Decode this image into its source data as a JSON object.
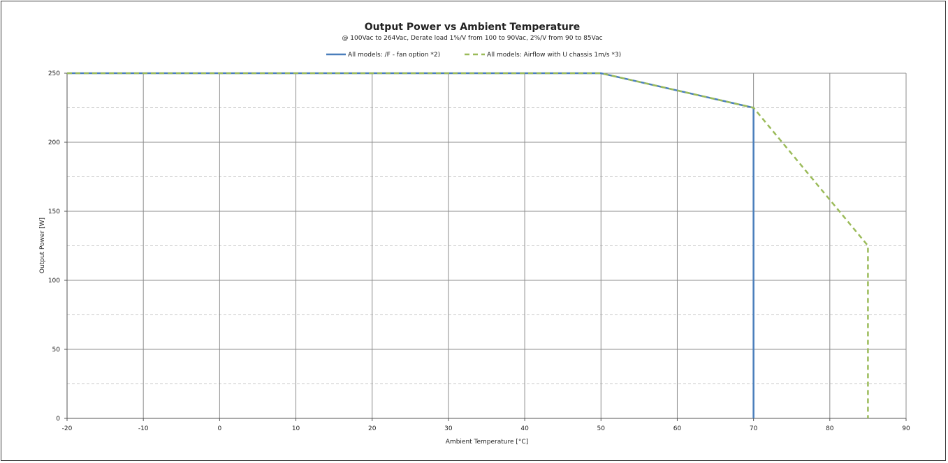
{
  "chart_data": {
    "type": "line",
    "title": "Output Power vs Ambient Temperature",
    "subtitle": "@ 100Vac to 264Vac, Derate load 1%/V from 100 to 90Vac, 2%/V from 90 to 85Vac",
    "xlabel": "Ambient Temperature [°C]",
    "ylabel": "Output Power [W]",
    "xlim": [
      -20,
      90
    ],
    "ylim": [
      0,
      250
    ],
    "xticks": [
      -20,
      -10,
      0,
      10,
      20,
      30,
      40,
      50,
      60,
      70,
      80,
      90
    ],
    "yticks": [
      0,
      50,
      100,
      150,
      200,
      250
    ],
    "grid": true,
    "legend_position": "top-center",
    "series": [
      {
        "name": "All models: /F - fan option *2)",
        "color": "#4a7ebb",
        "style": "solid",
        "x": [
          -20,
          50,
          70,
          70
        ],
        "y": [
          250,
          250,
          225,
          0
        ]
      },
      {
        "name": "All models: Airflow with U chassis 1m/s *3)",
        "color": "#9bbb59",
        "style": "dashed",
        "x": [
          -20,
          50,
          70,
          85,
          85
        ],
        "y": [
          250,
          250,
          225,
          125,
          0
        ]
      }
    ]
  }
}
